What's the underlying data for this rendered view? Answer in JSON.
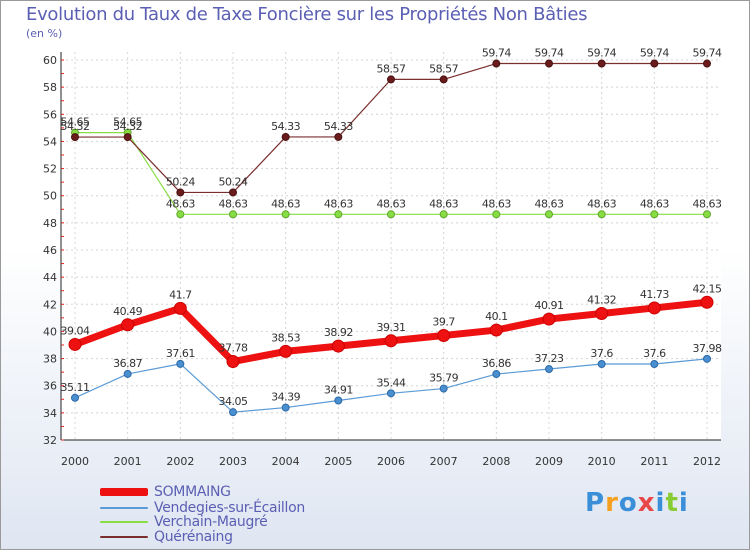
{
  "chart_data": {
    "type": "line",
    "title": "Evolution du Taux de Taxe Foncière sur les Propriétés Non Bâties",
    "ylabel": "(en %)",
    "xlabel": "",
    "categories": [
      "2000",
      "2001",
      "2002",
      "2003",
      "2004",
      "2005",
      "2006",
      "2007",
      "2008",
      "2009",
      "2010",
      "2011",
      "2012"
    ],
    "ylim": [
      32,
      60
    ],
    "yticks": [
      "32",
      "34",
      "36",
      "38",
      "40",
      "42",
      "44",
      "46",
      "48",
      "50",
      "52",
      "54",
      "56",
      "58",
      "60"
    ],
    "grid": true,
    "series": [
      {
        "name": "SOMMAING",
        "color": "#ee1111",
        "values": [
          39.04,
          40.49,
          41.7,
          37.78,
          38.53,
          38.92,
          39.31,
          39.7,
          40.1,
          40.91,
          41.32,
          41.73,
          42.15
        ],
        "labels": [
          "39.04",
          "40.49",
          "41.7",
          "37.78",
          "38.53",
          "38.92",
          "39.31",
          "39.7",
          "40.1",
          "40.91",
          "41.32",
          "41.73",
          "42.15"
        ]
      },
      {
        "name": "Vendegies-sur-Écaillon",
        "color": "#5b9bd5",
        "values": [
          35.11,
          36.87,
          37.61,
          34.05,
          34.39,
          34.91,
          35.44,
          35.79,
          36.86,
          37.23,
          37.6,
          37.6,
          37.98
        ],
        "labels": [
          "35.11",
          "36.87",
          "37.61",
          "34.05",
          "34.39",
          "34.91",
          "35.44",
          "35.79",
          "36.86",
          "37.23",
          "37.6",
          "37.6",
          "37.98"
        ]
      },
      {
        "name": "Verchain-Maugré",
        "color": "#88dd44",
        "values": [
          54.65,
          54.65,
          48.63,
          48.63,
          48.63,
          48.63,
          48.63,
          48.63,
          48.63,
          48.63,
          48.63,
          48.63,
          48.63
        ],
        "labels": [
          "54.65",
          "54.65",
          "48.63",
          "48.63",
          "48.63",
          "48.63",
          "48.63",
          "48.63",
          "48.63",
          "48.63",
          "48.63",
          "48.63",
          "48.63"
        ]
      },
      {
        "name": "Quérénaing",
        "color": "#7a2e2e",
        "values": [
          54.32,
          54.32,
          50.24,
          50.24,
          54.33,
          54.33,
          58.57,
          58.57,
          59.74,
          59.74,
          59.74,
          59.74,
          59.74
        ],
        "labels": [
          "54.32",
          "54.32",
          "50.24",
          "50.24",
          "54.33",
          "54.33",
          "58.57",
          "58.57",
          "59.74",
          "59.74",
          "59.74",
          "59.74",
          "59.74"
        ]
      }
    ]
  },
  "logo": {
    "text": "Proxiti"
  }
}
